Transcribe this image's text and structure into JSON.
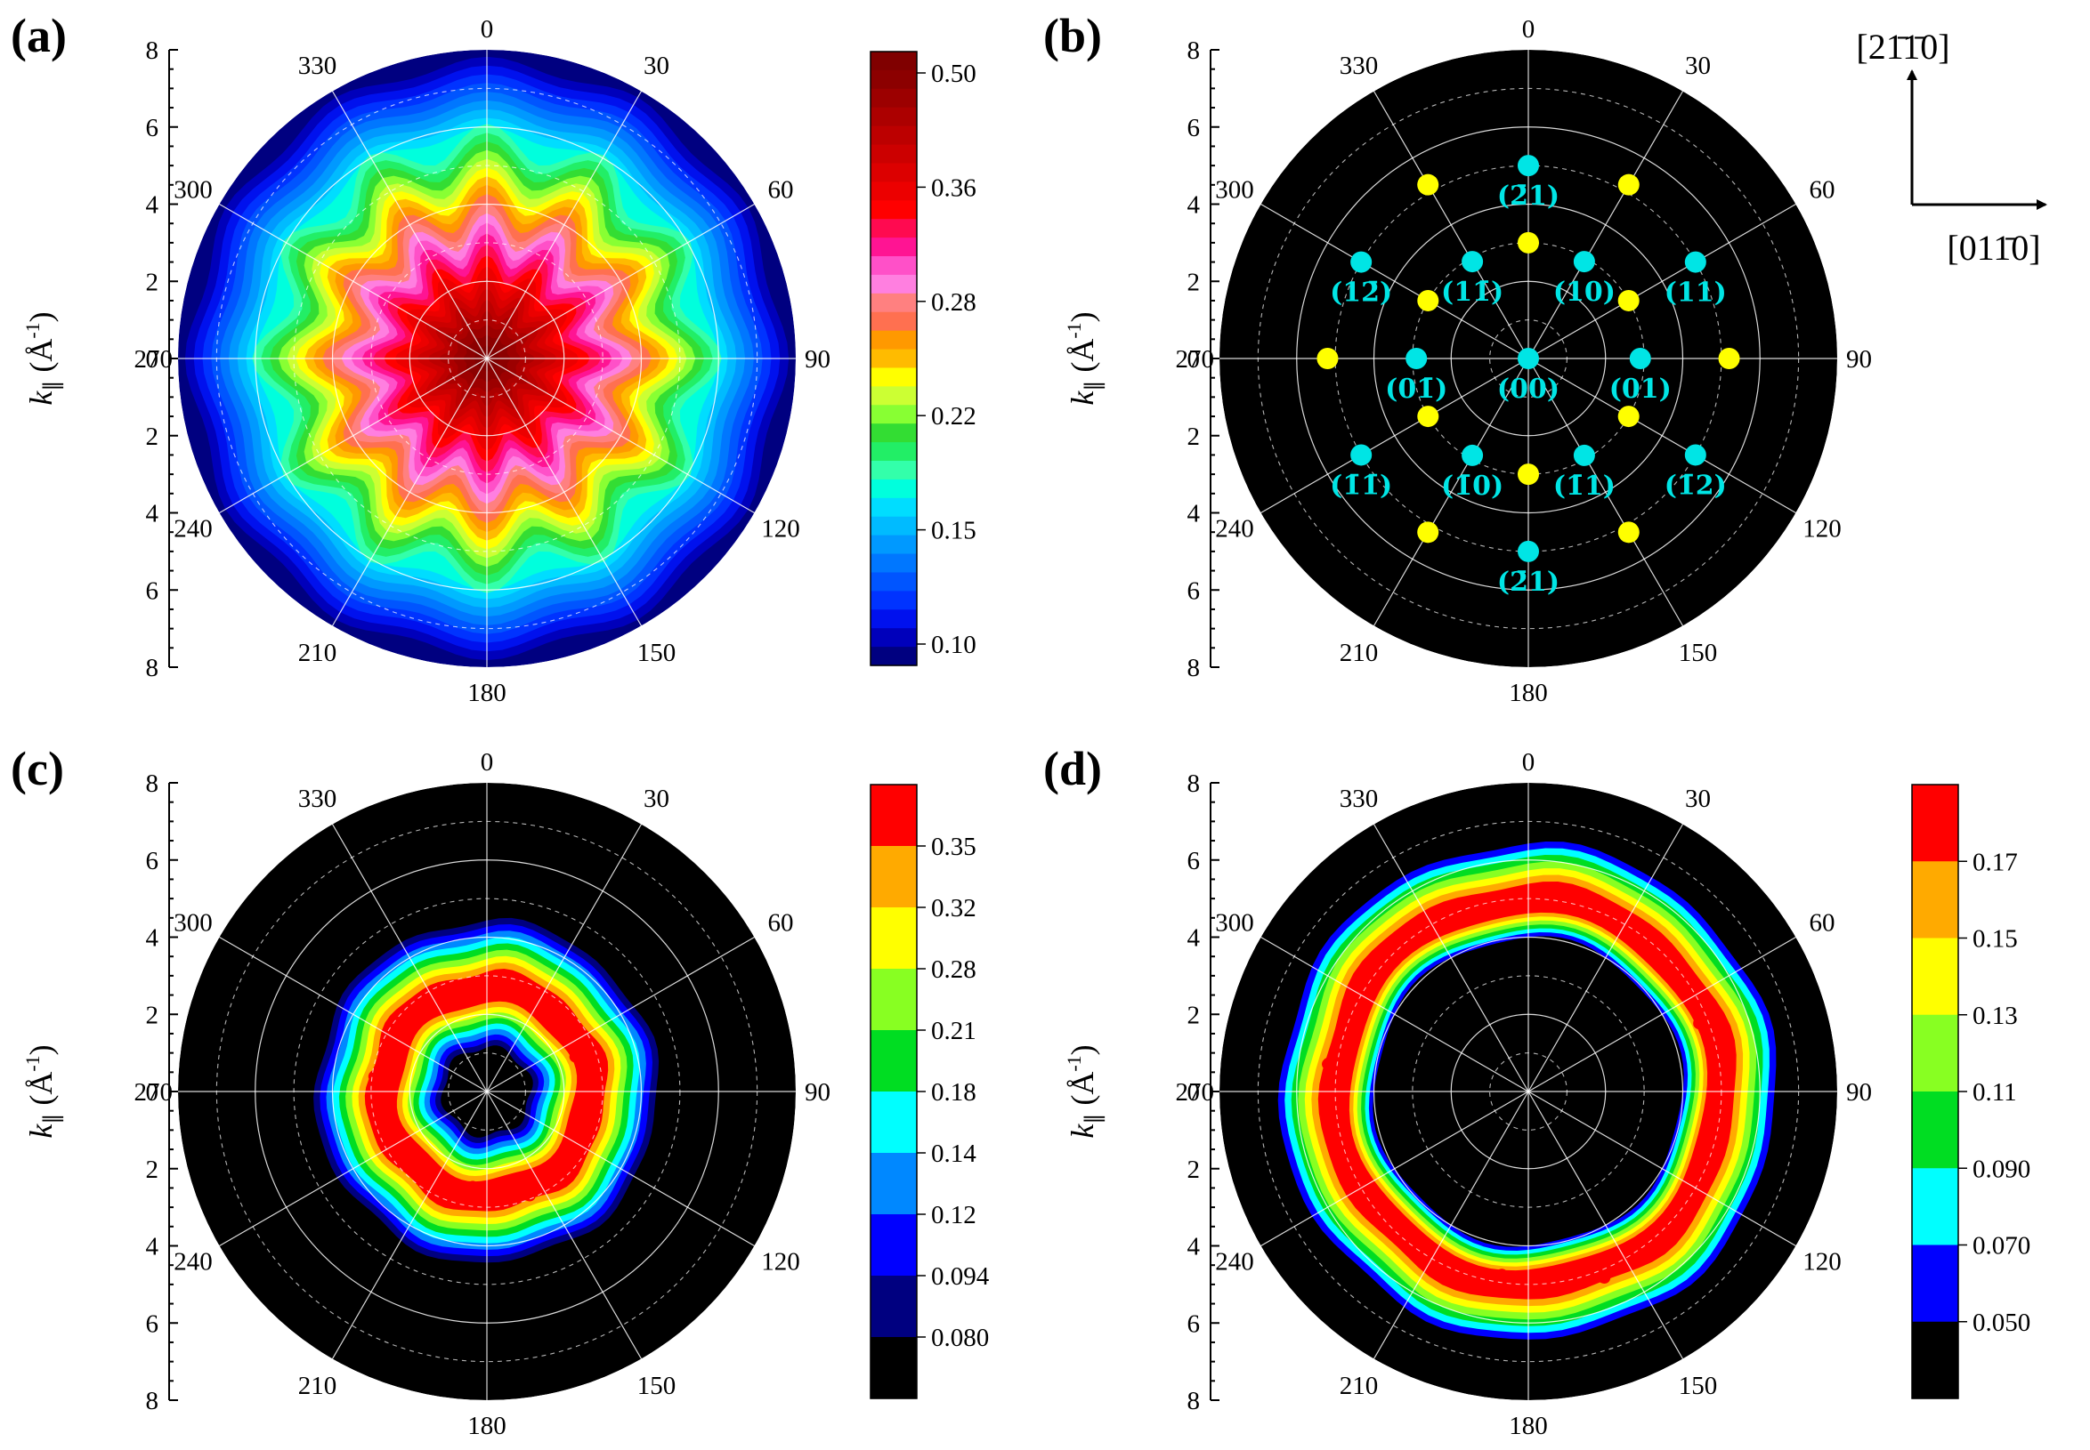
{
  "colors": {
    "background_disk": "#000000",
    "spot_integer": "#00e5e5",
    "spot_fractional": "#ffff00"
  },
  "chart_data": [
    {
      "id": "a",
      "panel_label": "(a)",
      "type": "polar-contour",
      "radial_axis": {
        "label_symbol": "k",
        "label_sub": "∥",
        "label_unit": " (Å",
        "label_sup": "-1",
        "label_close": ")",
        "range": [
          0,
          8
        ],
        "ticks": [
          "8",
          "6",
          "4",
          "2",
          "0",
          "2",
          "4",
          "6",
          "8"
        ]
      },
      "angle_ticks": [
        "0",
        "30",
        "60",
        "90",
        "120",
        "150",
        "180",
        "210",
        "240",
        "270",
        "300",
        "330"
      ],
      "colorbar": {
        "tick_labels": [
          "0.50",
          "0.36",
          "0.28",
          "0.22",
          "0.15",
          "0.10"
        ],
        "colors": [
          "#800000",
          "#8c0000",
          "#9c0000",
          "#ac0000",
          "#bc0000",
          "#cc0000",
          "#dc0000",
          "#ec0000",
          "#ff0000",
          "#ff0a50",
          "#ff1493",
          "#ff50c8",
          "#ff7fe0",
          "#ff8080",
          "#ff7050",
          "#ff9900",
          "#ffbb00",
          "#ffff00",
          "#ccff33",
          "#88ff33",
          "#33dd33",
          "#22ee66",
          "#33ffaa",
          "#00ffdd",
          "#00ddff",
          "#00bbff",
          "#0099ff",
          "#0077ff",
          "#0055ff",
          "#0033ff",
          "#0011ee",
          "#0000bb",
          "#000080"
        ]
      },
      "profile": {
        "center_value": 0.51,
        "plateau_value": 0.45,
        "plateau_radius": 2.4,
        "falloff_radius": 3.9,
        "edge_value": 0.09,
        "modulation_fold": 12,
        "modulation_amplitude": 0.45
      }
    },
    {
      "id": "b",
      "panel_label": "(b)",
      "type": "polar-scatter",
      "radial_axis": {
        "label_symbol": "k",
        "label_sub": "∥",
        "label_unit": " (Å",
        "label_sup": "-1",
        "label_close": ")",
        "range": [
          0,
          8
        ],
        "ticks": [
          "8",
          "6",
          "4",
          "2",
          "0",
          "2",
          "4",
          "6",
          "8"
        ]
      },
      "angle_ticks": [
        "0",
        "30",
        "60",
        "90",
        "120",
        "150",
        "180",
        "210",
        "240",
        "270",
        "300",
        "330"
      ],
      "points_integer": [
        {
          "label": "(00)",
          "r": 0.0,
          "theta": 0
        },
        {
          "label": "(10)",
          "r": 2.9,
          "theta": 30
        },
        {
          "label": "(01)",
          "r": 2.9,
          "theta": 90
        },
        {
          "label": "(1̄1)",
          "r": 2.9,
          "theta": 150
        },
        {
          "label": "(1̄0)",
          "r": 2.9,
          "theta": 210
        },
        {
          "label": "(01̄)",
          "r": 2.9,
          "theta": 270
        },
        {
          "label": "(11̄)",
          "r": 2.9,
          "theta": 330
        },
        {
          "label": "(2̄1)",
          "r": 5.0,
          "theta": 0
        },
        {
          "label": "(11)",
          "r": 5.0,
          "theta": 60
        },
        {
          "label": "(1̄2)",
          "r": 5.0,
          "theta": 120
        },
        {
          "label": "(2̄1)",
          "r": 5.0,
          "theta": 180
        },
        {
          "label": "(1̄1̄)",
          "r": 5.0,
          "theta": 240
        },
        {
          "label": "(12̄)",
          "r": 5.0,
          "theta": 300
        }
      ],
      "points_fractional": [
        {
          "r": 3.0,
          "theta": 0
        },
        {
          "r": 3.0,
          "theta": 60
        },
        {
          "r": 3.0,
          "theta": 120
        },
        {
          "r": 3.0,
          "theta": 180
        },
        {
          "r": 3.0,
          "theta": 240
        },
        {
          "r": 3.0,
          "theta": 300
        },
        {
          "r": 5.2,
          "theta": 30
        },
        {
          "r": 5.2,
          "theta": 90
        },
        {
          "r": 5.2,
          "theta": 150
        },
        {
          "r": 5.2,
          "theta": 210
        },
        {
          "r": 5.2,
          "theta": 270
        },
        {
          "r": 5.2,
          "theta": 330
        }
      ],
      "direction_axes": {
        "vertical": "[21̄1̄0]",
        "horizontal": "[011̄0]"
      }
    },
    {
      "id": "c",
      "panel_label": "(c)",
      "type": "polar-contour",
      "radial_axis": {
        "label_symbol": "k",
        "label_sub": "∥",
        "label_unit": " (Å",
        "label_sup": "-1",
        "label_close": ")",
        "range": [
          0,
          8
        ],
        "ticks": [
          "8",
          "6",
          "4",
          "2",
          "0",
          "2",
          "4",
          "6",
          "8"
        ]
      },
      "angle_ticks": [
        "0",
        "30",
        "60",
        "90",
        "120",
        "150",
        "180",
        "210",
        "240",
        "270",
        "300",
        "330"
      ],
      "colorbar": {
        "tick_labels": [
          "0.35",
          "0.32",
          "0.28",
          "0.21",
          "0.18",
          "0.14",
          "0.12",
          "0.094",
          "0.080"
        ],
        "colors": [
          "#ff0000",
          "#ffaa00",
          "#ffff00",
          "#88ff22",
          "#00dd22",
          "#00ffff",
          "#0088ff",
          "#0000ff",
          "#000080",
          "#000000"
        ]
      },
      "profile": {
        "ring_radius": 2.7,
        "ring_width": 1.15,
        "inner_cutoff": 1.0,
        "outer_cutoff": 4.6,
        "peak_value": 0.34
      }
    },
    {
      "id": "d",
      "panel_label": "(d)",
      "type": "polar-contour",
      "radial_axis": {
        "label_symbol": "k",
        "label_sub": "∥",
        "label_unit": " (Å",
        "label_sup": "-1",
        "label_close": ")",
        "range": [
          0,
          8
        ],
        "ticks": [
          "8",
          "6",
          "4",
          "2",
          "0",
          "2",
          "4",
          "6",
          "8"
        ]
      },
      "angle_ticks": [
        "0",
        "30",
        "60",
        "90",
        "120",
        "150",
        "180",
        "210",
        "240",
        "270",
        "300",
        "330"
      ],
      "colorbar": {
        "tick_labels": [
          "0.17",
          "0.15",
          "0.13",
          "0.11",
          "0.090",
          "0.070",
          "0.050"
        ],
        "colors": [
          "#ff0000",
          "#ffaa00",
          "#ffff00",
          "#88ff22",
          "#00dd22",
          "#00ffff",
          "#0000ff",
          "#000000"
        ]
      },
      "profile": {
        "ring_radius": 5.0,
        "ring_width": 1.1,
        "inner_cutoff": 3.9,
        "outer_cutoff": 6.6,
        "peak_value": 0.16
      }
    }
  ]
}
